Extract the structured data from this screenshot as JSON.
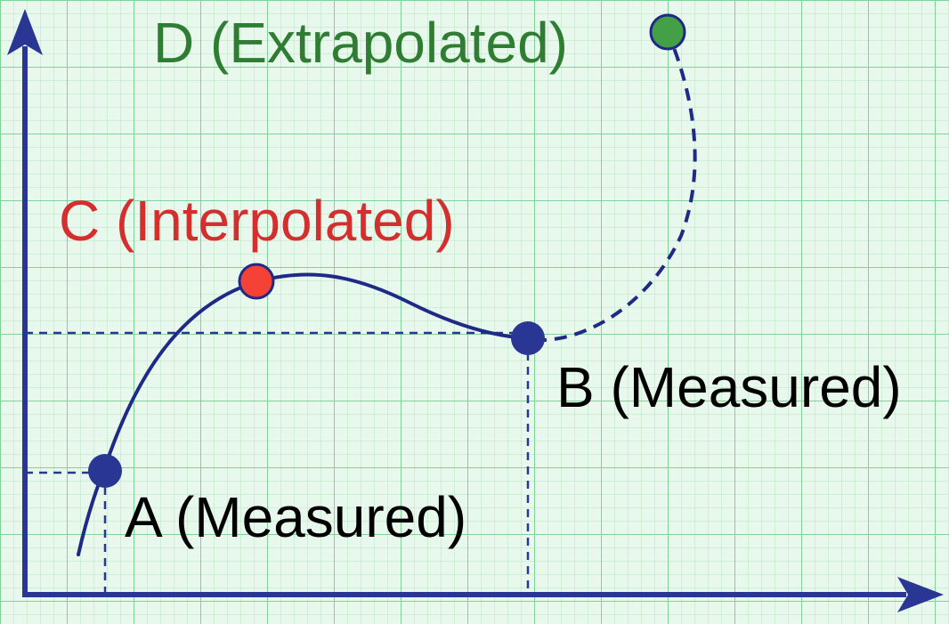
{
  "colors": {
    "grid_background": "#e9f8ec",
    "grid_minor": "#b3e6bf",
    "grid_major": "#7fd398",
    "axis": "#2a3694",
    "curve": "#1f2a86",
    "measured": "#2a3694",
    "interpolated_label": "#d32f2f",
    "interpolated_point": "#f44336",
    "extrapolated_label": "#2f7d32",
    "extrapolated_point": "#43a047",
    "measured_label": "#000000"
  },
  "points": {
    "a": {
      "label": "A (Measured)"
    },
    "b": {
      "label": "B (Measured)"
    },
    "c": {
      "label": "C (Interpolated)"
    },
    "d": {
      "label": "D (Extrapolated)"
    }
  },
  "icons": {
    "x_axis_arrow": "arrowhead-right-icon",
    "y_axis_arrow": "arrowhead-up-icon"
  }
}
